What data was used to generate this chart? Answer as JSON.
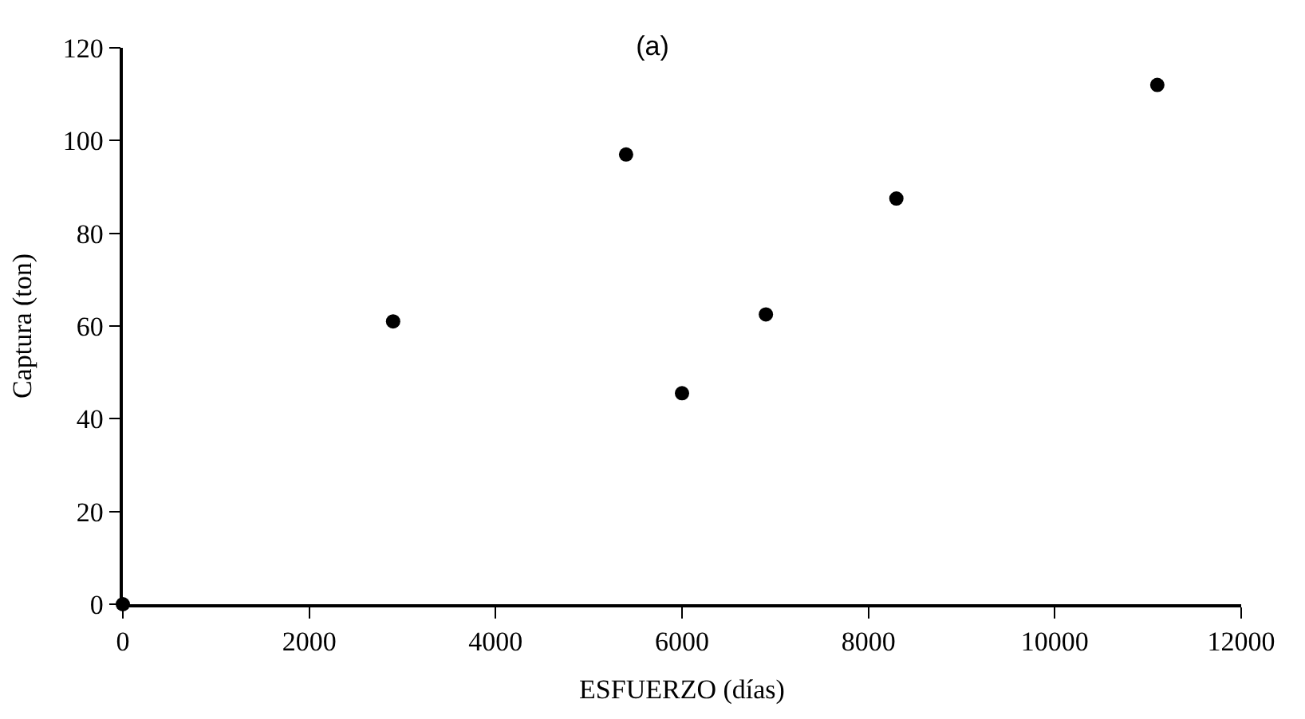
{
  "chart_data": {
    "type": "scatter",
    "title": "(a)",
    "xlabel": "ESFUERZO (días)",
    "ylabel": "Captura (ton)",
    "x": [
      0,
      2900,
      5400,
      6000,
      6900,
      8300,
      11100
    ],
    "series": [
      {
        "color": "#000000",
        "values": [
          0,
          61,
          97,
          45.5,
          62.5,
          87.5,
          112
        ]
      }
    ],
    "xlim": [
      0,
      12000
    ],
    "xticks": [
      0,
      2000,
      4000,
      6000,
      8000,
      10000,
      12000
    ],
    "ylim": [
      0,
      120
    ],
    "yticks": [
      0,
      20,
      40,
      60,
      80,
      100,
      120
    ],
    "marker": "circle",
    "legend": false
  }
}
